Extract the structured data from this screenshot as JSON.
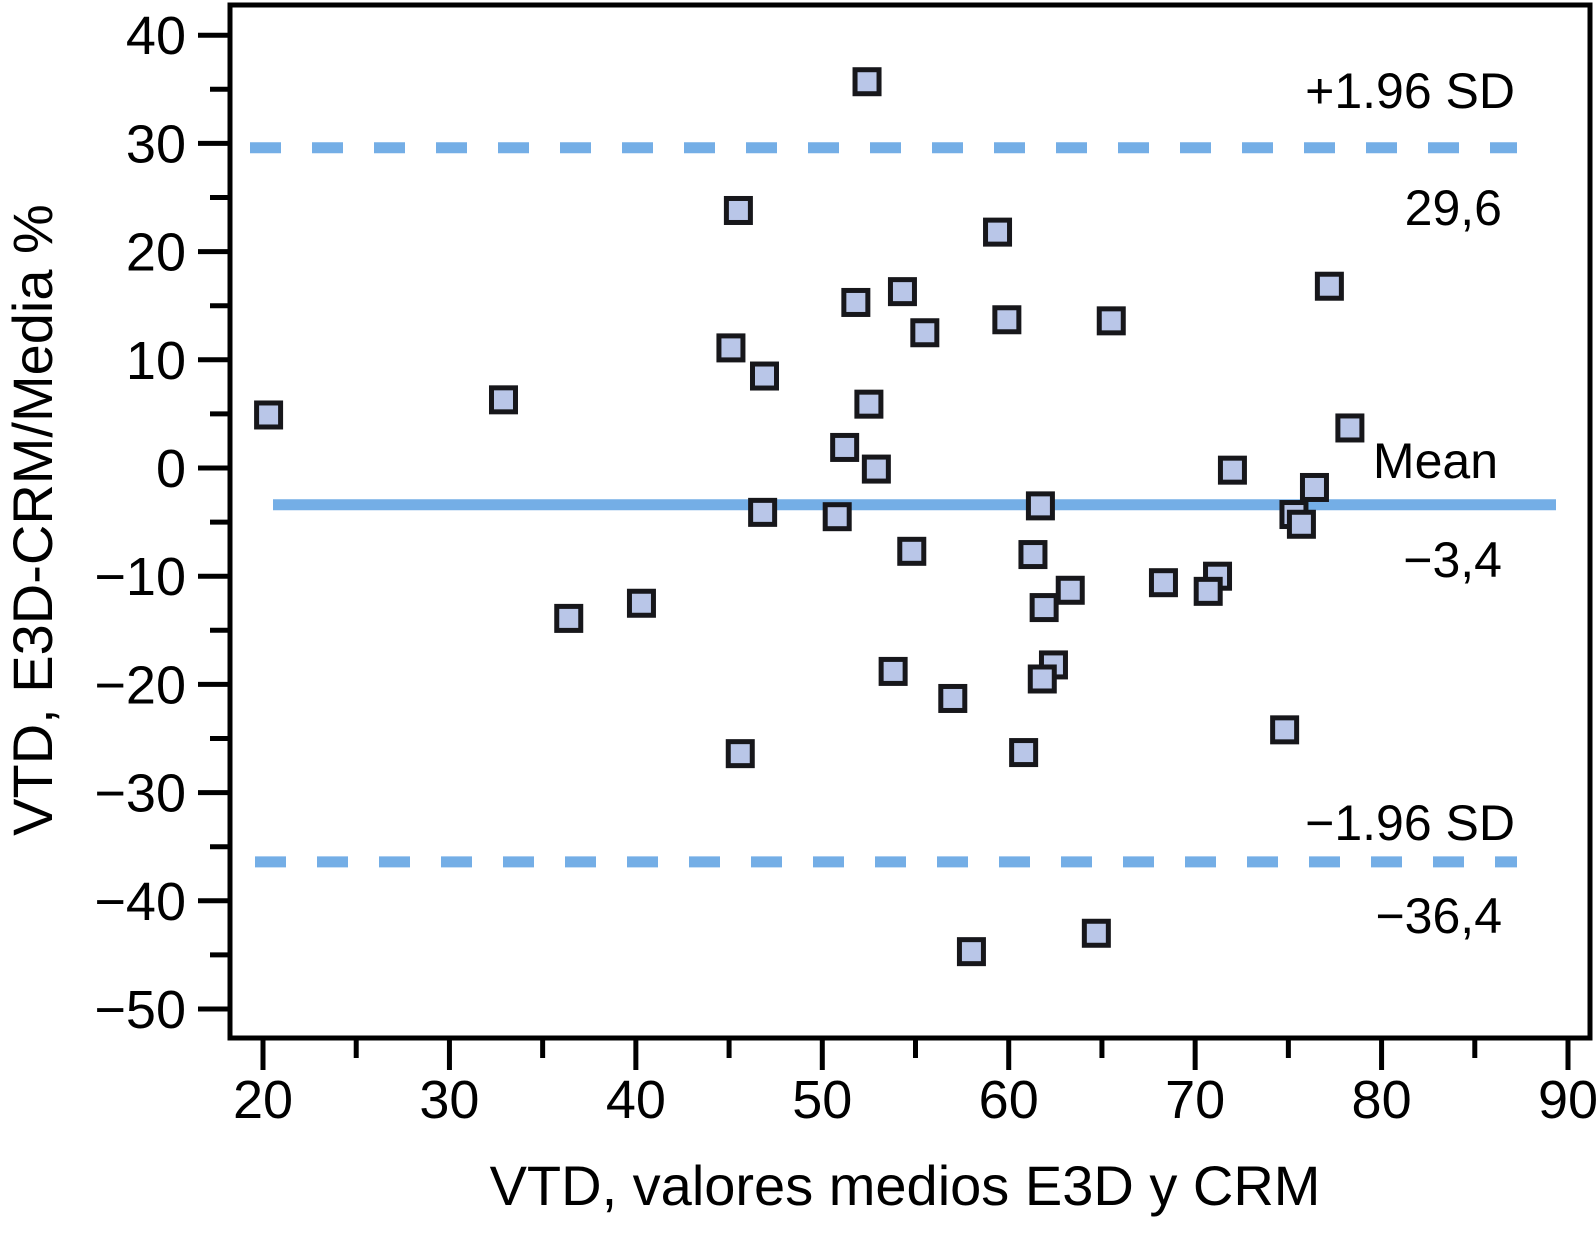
{
  "chart_data": {
    "type": "scatter",
    "title": "",
    "xlabel": "VTD, valores medios E3D y CRM",
    "ylabel": "VTD, E3D-CRM/Media %",
    "xlim": [
      18.2,
      91.2
    ],
    "ylim": [
      -52.7,
      42.8
    ],
    "x_major_ticks": [
      20,
      30,
      40,
      50,
      60,
      70,
      80,
      90
    ],
    "x_minor_ticks": [
      25,
      35,
      45,
      55,
      65,
      75,
      85
    ],
    "y_major_ticks": [
      40,
      30,
      20,
      10,
      0,
      -10,
      -20,
      -30,
      -40,
      -50
    ],
    "y_minor_ticks": [
      35,
      25,
      15,
      5,
      -5,
      -15,
      -25,
      -35,
      -45
    ],
    "grid": false,
    "legend": "none",
    "marker": "square",
    "colors": {
      "marker_fill": "#b9c6e8",
      "marker_edge": "#17171b",
      "reference_line_blue": "#74aee6",
      "axis": "#000000"
    },
    "lines": {
      "mean": -3.4,
      "upper_loa": 29.6,
      "lower_loa": -36.4
    },
    "annotations": {
      "upper_sd_label": "+1.96 SD",
      "upper_sd_value": "29,6",
      "mean_label": "Mean",
      "mean_value": "−3,4",
      "lower_sd_label": "−1.96 SD",
      "lower_sd_value": "−36,4"
    },
    "points": [
      [
        20.3,
        4.9
      ],
      [
        32.9,
        6.3
      ],
      [
        36.4,
        -13.9
      ],
      [
        40.3,
        -12.5
      ],
      [
        45.5,
        23.8
      ],
      [
        45.1,
        11.1
      ],
      [
        46.9,
        8.5
      ],
      [
        46.8,
        -4.1
      ],
      [
        45.6,
        -26.4
      ],
      [
        52.4,
        35.7
      ],
      [
        51.8,
        15.3
      ],
      [
        54.3,
        16.3
      ],
      [
        55.5,
        12.5
      ],
      [
        59.4,
        21.8
      ],
      [
        59.9,
        13.7
      ],
      [
        65.5,
        13.6
      ],
      [
        51.2,
        1.9
      ],
      [
        52.5,
        5.9
      ],
      [
        52.9,
        -0.1
      ],
      [
        50.8,
        -4.5
      ],
      [
        53.8,
        -18.8
      ],
      [
        54.8,
        -7.7
      ],
      [
        57.0,
        -21.3
      ],
      [
        61.7,
        -3.5
      ],
      [
        61.3,
        -8.0
      ],
      [
        63.3,
        -11.3
      ],
      [
        61.9,
        -12.9
      ],
      [
        62.4,
        -18.2
      ],
      [
        61.8,
        -19.5
      ],
      [
        60.8,
        -26.3
      ],
      [
        68.3,
        -10.6
      ],
      [
        71.2,
        -10.0
      ],
      [
        70.7,
        -11.4
      ],
      [
        72.0,
        -0.2
      ],
      [
        74.8,
        -24.2
      ],
      [
        75.3,
        -4.3
      ],
      [
        75.7,
        -5.2
      ],
      [
        76.4,
        -1.8
      ],
      [
        77.2,
        16.8
      ],
      [
        78.3,
        3.7
      ],
      [
        58.0,
        -44.7
      ],
      [
        64.7,
        -43.0
      ]
    ]
  }
}
